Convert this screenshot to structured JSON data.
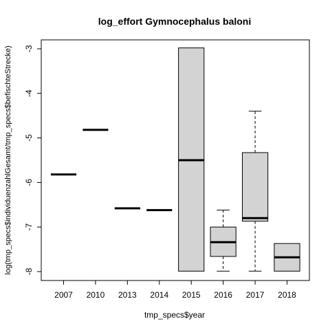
{
  "chart_data": {
    "type": "boxplot",
    "title": "log_effort Gymnocephalus baloni",
    "xlabel": "tmp_specs$year",
    "ylabel": "log(tmp_specs$individuenzahlGesamt/tmp_specs$befischteStrecke)",
    "categories": [
      "2007",
      "2010",
      "2013",
      "2014",
      "2015",
      "2016",
      "2017",
      "2018"
    ],
    "yticks": [
      -3,
      -4,
      -5,
      -6,
      -7,
      -8
    ],
    "ylim": [
      -8.2,
      -2.8
    ],
    "box_fill": "#d3d3d3",
    "boxes": [
      {
        "category": "2007",
        "whisker_low": -5.82,
        "q1": -5.82,
        "median": -5.82,
        "q3": -5.82,
        "whisker_high": -5.82
      },
      {
        "category": "2010",
        "whisker_low": -4.82,
        "q1": -4.82,
        "median": -4.82,
        "q3": -4.82,
        "whisker_high": -4.82
      },
      {
        "category": "2013",
        "whisker_low": -6.58,
        "q1": -6.58,
        "median": -6.58,
        "q3": -6.58,
        "whisker_high": -6.58
      },
      {
        "category": "2014",
        "whisker_low": -6.62,
        "q1": -6.62,
        "median": -6.62,
        "q3": -6.62,
        "whisker_high": -6.62
      },
      {
        "category": "2015",
        "whisker_low": -7.99,
        "q1": -7.99,
        "median": -5.5,
        "q3": -2.98,
        "whisker_high": -2.98
      },
      {
        "category": "2016",
        "whisker_low": -7.99,
        "q1": -7.66,
        "median": -7.34,
        "q3": -7.0,
        "whisker_high": -6.62
      },
      {
        "category": "2017",
        "whisker_low": -7.99,
        "q1": -6.87,
        "median": -6.8,
        "q3": -5.33,
        "whisker_high": -4.4
      },
      {
        "category": "2018",
        "whisker_low": -7.99,
        "q1": -7.99,
        "median": -7.68,
        "q3": -7.37,
        "whisker_high": -7.37
      }
    ]
  }
}
